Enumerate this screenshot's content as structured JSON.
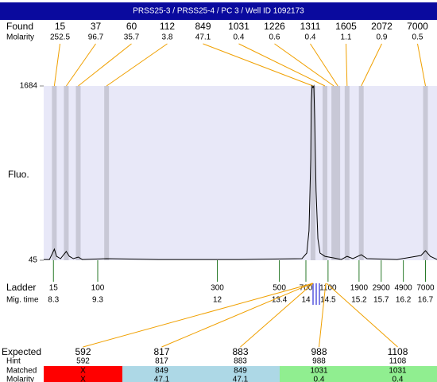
{
  "header": {
    "title": "PRSS25-3 / PRSS25-4 / PC 3 / Well ID 1092173"
  },
  "found": {
    "label": "Found",
    "molarity_label": "Molarity",
    "peaks": [
      {
        "size": 15,
        "molarity": 252.5,
        "time": 8.32
      },
      {
        "size": 37,
        "molarity": 96.7,
        "time": 8.59
      },
      {
        "size": 60,
        "molarity": 35.7,
        "time": 8.86
      },
      {
        "size": 112,
        "molarity": 3.8,
        "time": 9.5
      },
      {
        "size": 849,
        "molarity": 47.1,
        "time": 14.16
      },
      {
        "size": 1031,
        "molarity": 0.4,
        "time": 14.43
      },
      {
        "size": 1226,
        "molarity": 0.6,
        "time": 14.63
      },
      {
        "size": 1311,
        "molarity": 0.4,
        "time": 14.72
      },
      {
        "size": 1605,
        "molarity": 1.1,
        "time": 14.93
      },
      {
        "size": 2072,
        "molarity": 0.9,
        "time": 15.25
      },
      {
        "size": 7000,
        "molarity": 0.5,
        "time": 16.7
      }
    ]
  },
  "chart_data": {
    "type": "line",
    "ylabel": "Fluo.",
    "xlim": [
      8.08,
      16.96
    ],
    "ylim": [
      45,
      1684
    ],
    "yticks": [
      1684,
      45
    ],
    "x": [
      8.08,
      8.21,
      8.28,
      8.32,
      8.37,
      8.46,
      8.53,
      8.59,
      8.66,
      8.75,
      8.86,
      8.95,
      9.5,
      10.68,
      12.48,
      13.91,
      14.02,
      14.07,
      14.11,
      14.12,
      14.14,
      14.16,
      14.18,
      14.2,
      14.23,
      14.27,
      14.32,
      14.43,
      14.63,
      14.8,
      14.93,
      15.06,
      15.25,
      15.38,
      16.06,
      16.6,
      16.7,
      16.81,
      16.96
    ],
    "values": [
      52,
      52,
      112,
      150,
      82,
      60,
      97,
      127,
      82,
      60,
      75,
      52,
      60,
      52,
      52,
      60,
      112,
      322,
      995,
      1519,
      1684,
      1669,
      1684,
      1370,
      696,
      247,
      112,
      82,
      67,
      52,
      82,
      60,
      97,
      60,
      52,
      90,
      135,
      82,
      52
    ],
    "color": "#000000"
  },
  "ladder": {
    "label": "Ladder",
    "time_label": "Mig. time",
    "sizes": [
      15,
      100,
      300,
      500,
      700,
      1100,
      1900,
      2900,
      4900,
      7000
    ],
    "times": [
      8.3,
      9.3,
      12,
      13.4,
      14,
      14.5,
      15.2,
      15.7,
      16.2,
      16.7
    ]
  },
  "expected": {
    "labels": [
      "Expected",
      "Hint",
      "Matched",
      "Molarity"
    ],
    "columns": [
      {
        "expected": 592,
        "hint": 592,
        "matched": "X",
        "molarity": "X",
        "color": "#ff0000"
      },
      {
        "expected": 817,
        "hint": 817,
        "matched": 849,
        "molarity": 47.1,
        "color": "#add8e6"
      },
      {
        "expected": 883,
        "hint": 883,
        "matched": 849,
        "molarity": 47.1,
        "color": "#add8e6"
      },
      {
        "expected": 988,
        "hint": 988,
        "matched": 1031,
        "molarity": 0.4,
        "color": "#90ee90"
      },
      {
        "expected": 1108,
        "hint": 1108,
        "matched": 1031,
        "molarity": 0.4,
        "color": "#90ee90"
      }
    ]
  }
}
